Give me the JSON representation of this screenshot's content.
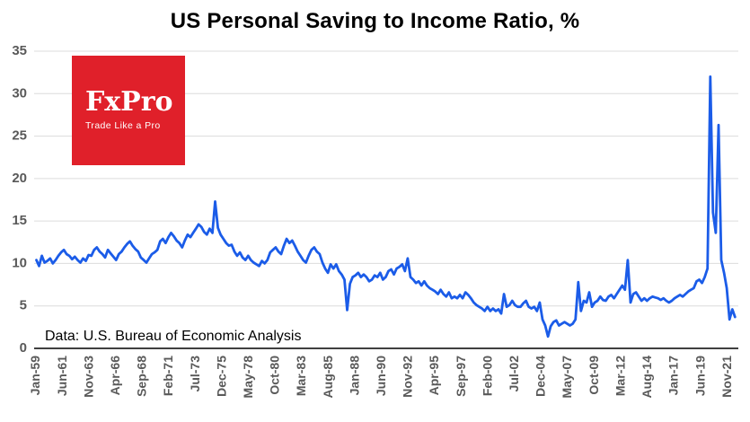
{
  "title": "US Personal Saving to Income Ratio, %",
  "annotation": "Data: U.S. Bureau of Economic Analysis",
  "logo": {
    "line1": "FxPro",
    "line2": "Trade Like a Pro",
    "bg_color": "#e0202a",
    "text_color": "#ffffff"
  },
  "chart_data": {
    "type": "line",
    "title": "US Personal Saving to Income Ratio, %",
    "series_name": "Personal saving to income ratio, %",
    "line_color": "#1b5ce8",
    "grid_color": "#dcdcdc",
    "axis_color": "#000000",
    "tick_label_color": "#595959",
    "grid": "horizontal",
    "ylim": [
      0,
      35
    ],
    "yticks": [
      0,
      5,
      10,
      15,
      20,
      25,
      30,
      35
    ],
    "xlim": [
      1958.8,
      2022.8
    ],
    "x_start": 1959.0,
    "x_step": 0.25,
    "xticks": [
      {
        "label": "Jan-59",
        "t": 1959.0
      },
      {
        "label": "Jun-61",
        "t": 1961.417
      },
      {
        "label": "Nov-63",
        "t": 1963.833
      },
      {
        "label": "Apr-66",
        "t": 1966.25
      },
      {
        "label": "Sep-68",
        "t": 1968.667
      },
      {
        "label": "Feb-71",
        "t": 1971.083
      },
      {
        "label": "Jul-73",
        "t": 1973.5
      },
      {
        "label": "Dec-75",
        "t": 1975.917
      },
      {
        "label": "May-78",
        "t": 1978.333
      },
      {
        "label": "Oct-80",
        "t": 1980.75
      },
      {
        "label": "Mar-83",
        "t": 1983.167
      },
      {
        "label": "Aug-85",
        "t": 1985.583
      },
      {
        "label": "Jan-88",
        "t": 1988.0
      },
      {
        "label": "Jun-90",
        "t": 1990.417
      },
      {
        "label": "Nov-92",
        "t": 1992.833
      },
      {
        "label": "Apr-95",
        "t": 1995.25
      },
      {
        "label": "Sep-97",
        "t": 1997.667
      },
      {
        "label": "Feb-00",
        "t": 2000.083
      },
      {
        "label": "Jul-02",
        "t": 2002.5
      },
      {
        "label": "Dec-04",
        "t": 2004.917
      },
      {
        "label": "May-07",
        "t": 2007.333
      },
      {
        "label": "Oct-09",
        "t": 2009.75
      },
      {
        "label": "Mar-12",
        "t": 2012.167
      },
      {
        "label": "Aug-14",
        "t": 2014.583
      },
      {
        "label": "Jan-17",
        "t": 2017.0
      },
      {
        "label": "Jun-19",
        "t": 2019.417
      },
      {
        "label": "Nov-21",
        "t": 2021.833
      }
    ],
    "values": [
      10.4,
      9.7,
      10.9,
      10.1,
      10.3,
      10.6,
      10.0,
      10.4,
      10.9,
      11.3,
      11.6,
      11.1,
      10.9,
      10.5,
      10.8,
      10.4,
      10.1,
      10.6,
      10.3,
      11.0,
      10.9,
      11.6,
      11.9,
      11.4,
      11.1,
      10.7,
      11.6,
      11.2,
      10.8,
      10.4,
      11.1,
      11.4,
      11.9,
      12.3,
      12.6,
      12.1,
      11.7,
      11.4,
      10.7,
      10.4,
      10.1,
      10.6,
      11.1,
      11.3,
      11.6,
      12.6,
      12.9,
      12.4,
      13.1,
      13.6,
      13.2,
      12.7,
      12.4,
      11.9,
      12.7,
      13.4,
      13.1,
      13.6,
      14.1,
      14.6,
      14.3,
      13.7,
      13.4,
      14.1,
      13.6,
      17.3,
      14.2,
      13.4,
      12.9,
      12.4,
      12.1,
      12.2,
      11.4,
      10.9,
      11.3,
      10.7,
      10.4,
      10.9,
      10.4,
      10.1,
      9.9,
      9.7,
      10.3,
      10.0,
      10.4,
      11.3,
      11.6,
      11.9,
      11.4,
      11.1,
      12.1,
      12.9,
      12.4,
      12.7,
      12.1,
      11.4,
      10.9,
      10.4,
      10.1,
      10.9,
      11.6,
      11.9,
      11.4,
      11.1,
      10.1,
      9.4,
      8.9,
      9.9,
      9.4,
      9.9,
      9.1,
      8.7,
      8.1,
      4.5,
      7.6,
      8.4,
      8.6,
      8.9,
      8.4,
      8.7,
      8.4,
      7.9,
      8.1,
      8.6,
      8.4,
      8.9,
      8.1,
      8.4,
      9.1,
      9.3,
      8.7,
      9.4,
      9.6,
      9.9,
      9.1,
      10.6,
      8.4,
      8.1,
      7.7,
      7.9,
      7.4,
      7.9,
      7.4,
      7.1,
      6.9,
      6.7,
      6.4,
      6.9,
      6.4,
      6.1,
      6.6,
      5.9,
      6.1,
      5.9,
      6.3,
      5.9,
      6.6,
      6.3,
      5.9,
      5.4,
      5.1,
      4.9,
      4.7,
      4.4,
      4.9,
      4.4,
      4.7,
      4.4,
      4.6,
      4.1,
      6.4,
      4.9,
      5.1,
      5.6,
      5.1,
      4.9,
      4.9,
      5.3,
      5.6,
      4.9,
      4.7,
      4.9,
      4.4,
      5.4,
      3.4,
      2.7,
      1.4,
      2.6,
      3.1,
      3.3,
      2.7,
      2.9,
      3.1,
      2.9,
      2.7,
      2.9,
      3.4,
      7.8,
      4.4,
      5.6,
      5.4,
      6.6,
      4.9,
      5.4,
      5.6,
      6.1,
      5.7,
      5.6,
      6.1,
      6.3,
      5.9,
      6.4,
      6.9,
      7.4,
      6.9,
      10.4,
      5.4,
      6.4,
      6.6,
      6.1,
      5.6,
      5.9,
      5.6,
      5.9,
      6.1,
      6.0,
      5.9,
      5.7,
      5.9,
      5.6,
      5.4,
      5.6,
      5.9,
      6.1,
      6.3,
      6.1,
      6.4,
      6.7,
      6.9,
      7.1,
      7.9,
      8.1,
      7.7,
      8.4,
      9.4,
      32.0,
      16.0,
      13.6,
      26.3,
      10.4,
      8.9,
      7.1,
      3.4,
      4.6,
      3.7
    ]
  }
}
